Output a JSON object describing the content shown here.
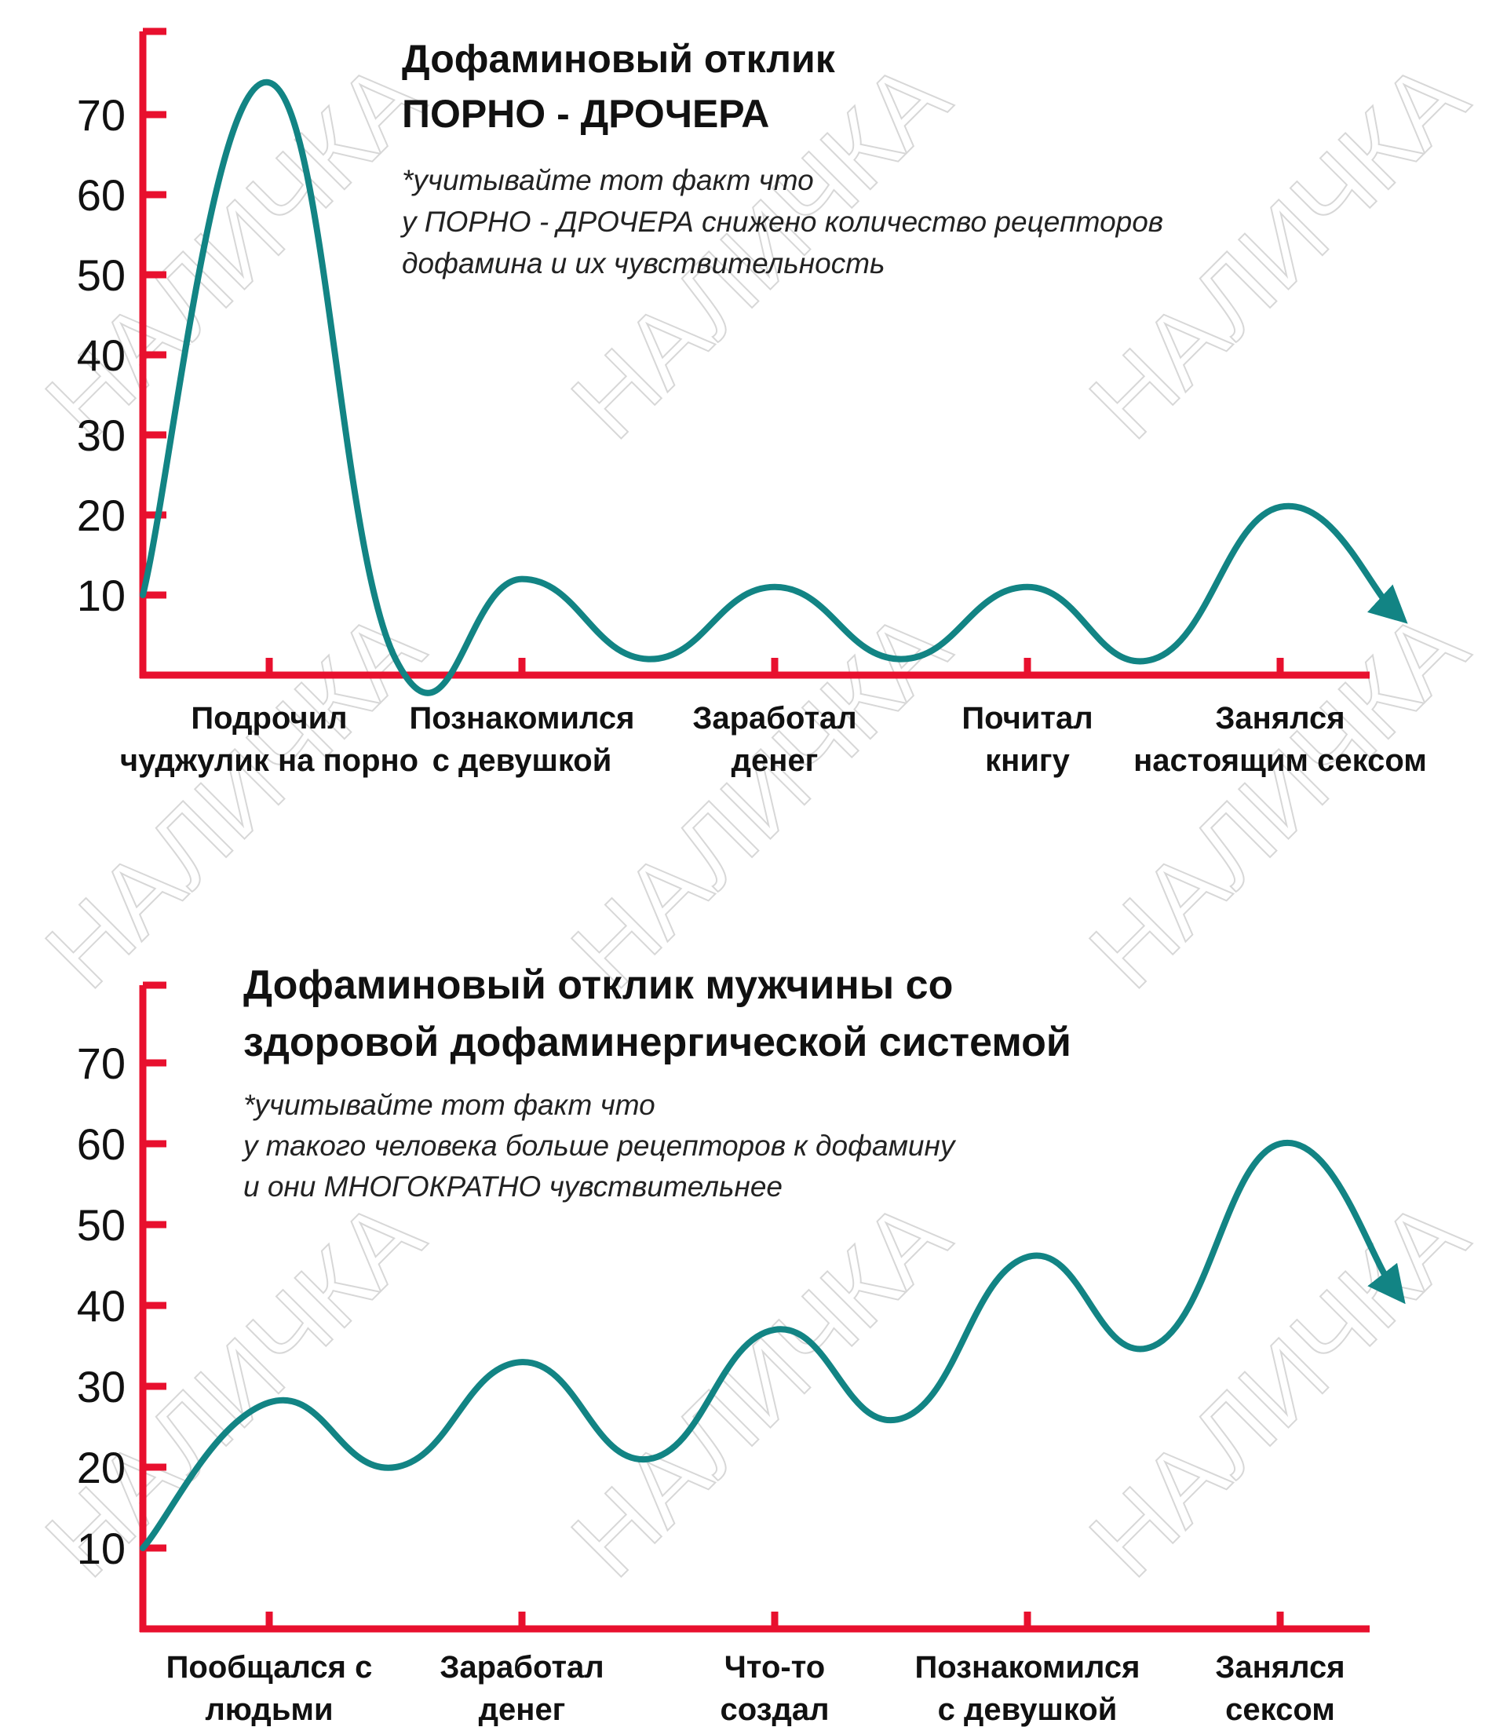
{
  "colors": {
    "axis": "#e8102e",
    "curve": "#128484",
    "text": "#111111",
    "watermark": "#d7d7d7"
  },
  "watermark": {
    "text": "НАЛИЧКА",
    "placement": "repeated diagonal across the page"
  },
  "chart_data": [
    {
      "type": "line",
      "title": [
        "Дофаминовый отклик",
        "ПОРНО - ДРОЧЕРА"
      ],
      "note": [
        "*учитывайте тот факт что",
        "у ПОРНО - ДРОЧЕРА снижено количество рецепторов",
        "дофамина и их чувствительность"
      ],
      "yticks": [
        10,
        20,
        30,
        40,
        50,
        60,
        70
      ],
      "ylim": [
        0,
        80
      ],
      "xlim": [
        0,
        10
      ],
      "categories": [
        {
          "lines": [
            "Подрочил",
            "чуджулик на порно"
          ],
          "x": 1
        },
        {
          "lines": [
            "Познакомился",
            "с девушкой"
          ],
          "x": 3
        },
        {
          "lines": [
            "Заработал",
            "денег"
          ],
          "x": 5
        },
        {
          "lines": [
            "Почитал",
            "книгу"
          ],
          "x": 7
        },
        {
          "lines": [
            "Занялся",
            "настоящим сексом"
          ],
          "x": 9
        }
      ],
      "series": [
        {
          "x": [
            0,
            1,
            2,
            3,
            4,
            5,
            6,
            7,
            8,
            9,
            9.9
          ],
          "values": [
            10,
            74,
            2,
            12,
            2,
            11,
            2,
            11,
            2,
            21,
            8
          ],
          "end_arrow": true
        }
      ]
    },
    {
      "type": "line",
      "title": [
        "Дофаминовый отклик мужчины со",
        "здоровой  дофаминергической  системой"
      ],
      "note": [
        "*учитывайте тот факт что",
        "у такого человека больше рецепторов к дофамину",
        "и они МНОГОКРАТНО чувствительнее"
      ],
      "yticks": [
        10,
        20,
        30,
        40,
        50,
        60,
        70
      ],
      "ylim": [
        0,
        80
      ],
      "xlim": [
        0,
        10
      ],
      "categories": [
        {
          "lines": [
            "Пообщался с",
            "людьми"
          ],
          "x": 1
        },
        {
          "lines": [
            "Заработал",
            "денег"
          ],
          "x": 3
        },
        {
          "lines": [
            "Что-то",
            "создал"
          ],
          "x": 5
        },
        {
          "lines": [
            "Познакомился",
            "с девушкой"
          ],
          "x": 7
        },
        {
          "lines": [
            "Занялся",
            "сексом"
          ],
          "x": 9
        }
      ],
      "series": [
        {
          "x": [
            0,
            1,
            2,
            3,
            4,
            5,
            6,
            7,
            8,
            9,
            9.9
          ],
          "values": [
            10,
            28,
            20,
            33,
            21,
            37,
            26,
            46,
            35,
            60,
            42
          ],
          "end_arrow": true
        }
      ]
    }
  ]
}
